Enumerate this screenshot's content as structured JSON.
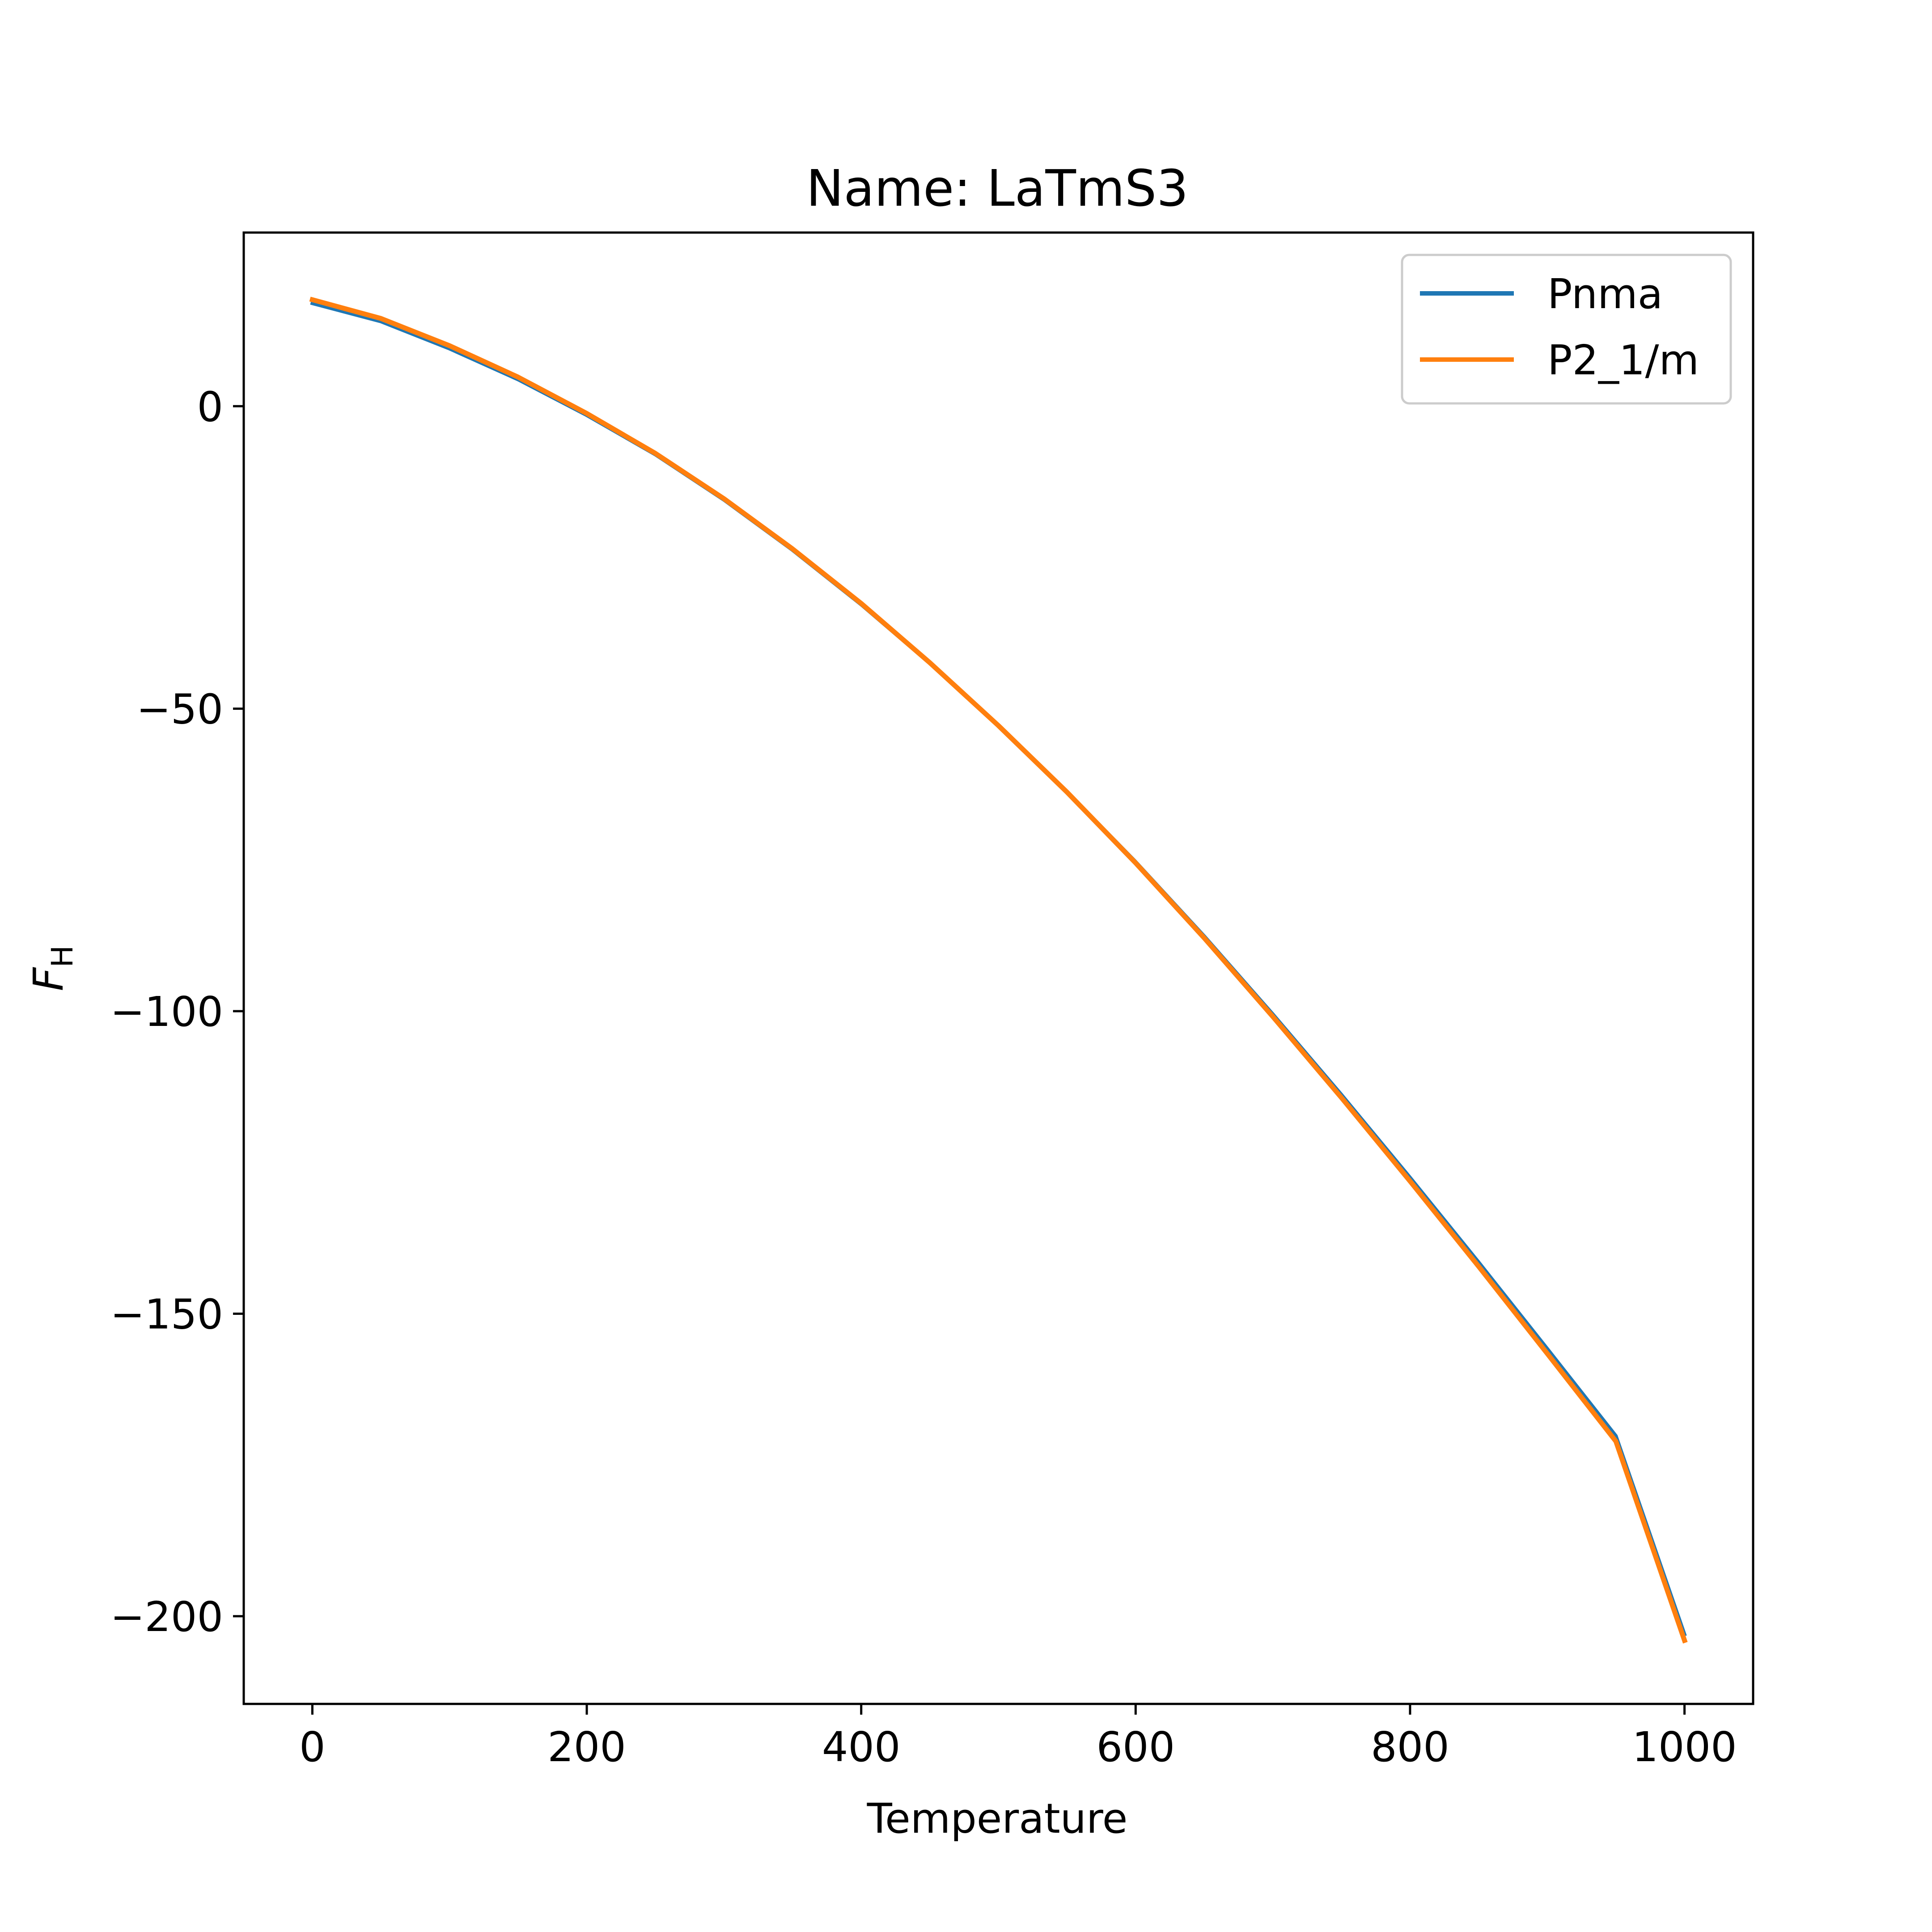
{
  "chart_data": {
    "type": "line",
    "title": "Name: LaTmS3",
    "xlabel": "Temperature",
    "ylabel": {
      "main": "F",
      "sub": "H"
    },
    "xlim": [
      -50,
      1050
    ],
    "ylim": [
      -214.5,
      28.7
    ],
    "xticks": [
      0,
      200,
      400,
      600,
      800,
      1000
    ],
    "yticks": [
      0,
      -50,
      -100,
      -150,
      -200
    ],
    "xtick_labels": [
      "0",
      "200",
      "400",
      "600",
      "800",
      "1000"
    ],
    "ytick_labels": [
      "0",
      "−50",
      "−100",
      "−150",
      "−200"
    ],
    "grid": false,
    "legend": {
      "position": "top-right"
    },
    "x": [
      0,
      50,
      100,
      150,
      200,
      250,
      300,
      350,
      400,
      450,
      500,
      550,
      600,
      650,
      700,
      750,
      800,
      850,
      900,
      950,
      1000
    ],
    "series": [
      {
        "name": "Pnma",
        "color": "#1f77b4",
        "values": [
          17.0,
          14.0,
          9.5,
          4.4,
          -1.5,
          -8.0,
          -15.5,
          -23.8,
          -32.8,
          -42.5,
          -52.8,
          -63.7,
          -75.3,
          -87.6,
          -100.5,
          -113.8,
          -127.5,
          -141.5,
          -155.8,
          -170.2,
          -203.0
        ]
      },
      {
        "name": "P2_1/m",
        "color": "#ff7f0e",
        "values": [
          17.6,
          14.5,
          10.0,
          4.8,
          -1.2,
          -7.8,
          -15.3,
          -23.6,
          -32.6,
          -42.4,
          -52.8,
          -63.8,
          -75.5,
          -87.9,
          -100.9,
          -114.3,
          -128.1,
          -142.2,
          -156.6,
          -171.1,
          -204.0
        ]
      }
    ]
  }
}
